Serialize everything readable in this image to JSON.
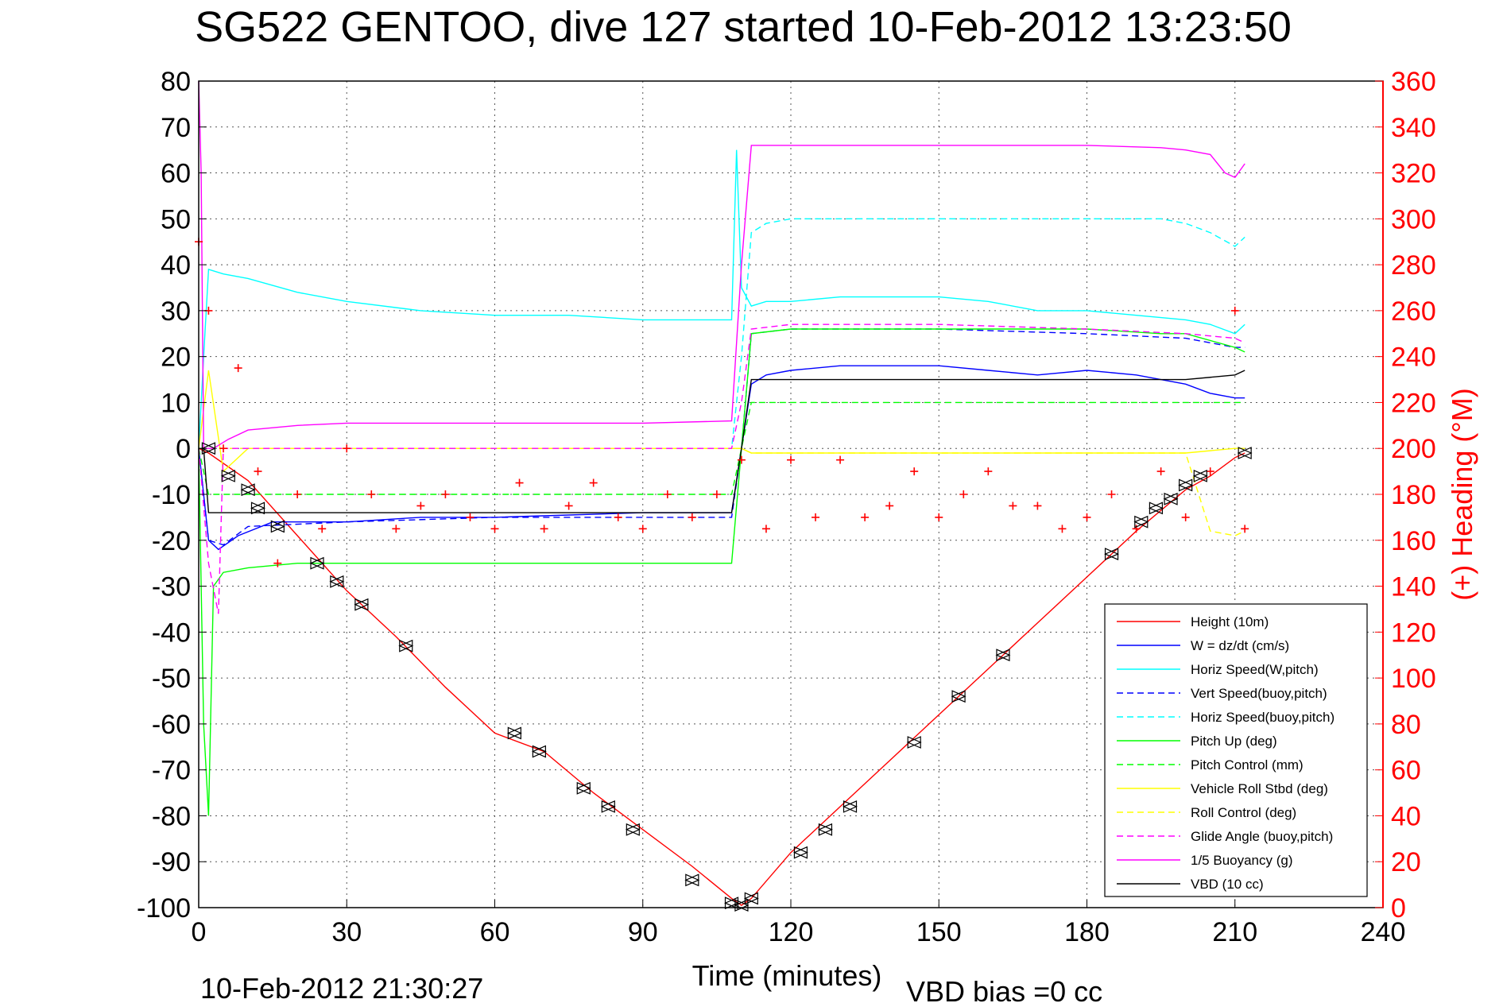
{
  "chart_data": {
    "type": "line",
    "title": "SG522 GENTOO, dive 127 started 10-Feb-2012 13:23:50",
    "xlabel": "Time (minutes)",
    "ylabel": "",
    "y2label": "(+) Heading (°M)",
    "xlim": [
      0,
      240
    ],
    "ylim": [
      -100,
      80
    ],
    "y2lim": [
      0,
      360
    ],
    "x_ticks": [
      0,
      30,
      60,
      90,
      120,
      150,
      180,
      210,
      240
    ],
    "y_ticks": [
      80,
      70,
      60,
      50,
      40,
      30,
      20,
      10,
      0,
      -10,
      -20,
      -30,
      -40,
      -50,
      -60,
      -70,
      -80,
      -90,
      -100
    ],
    "y2_ticks": [
      360,
      340,
      320,
      300,
      280,
      260,
      240,
      220,
      200,
      180,
      160,
      140,
      120,
      100,
      80,
      60,
      40,
      20,
      0
    ],
    "grid": true,
    "legend_position": "bottom-right",
    "footer_left": "10-Feb-2012 21:30:27",
    "footer_right": "VBD bias =0 cc",
    "colors": {
      "red": "#ff0000",
      "blue": "#0000ff",
      "cyan": "#00ffff",
      "green": "#00ff00",
      "yellow": "#ffff00",
      "magenta": "#ff00ff",
      "black": "#000000"
    },
    "series": [
      {
        "name": "Height (10m)",
        "color": "#ff0000",
        "style": "solid",
        "x": [
          0,
          2,
          10,
          20,
          30,
          40,
          50,
          60,
          70,
          80,
          90,
          100,
          108,
          110,
          112,
          120,
          130,
          140,
          150,
          160,
          170,
          180,
          190,
          200,
          205,
          210,
          212
        ],
        "y": [
          0,
          -1,
          -7,
          -19,
          -31,
          -41,
          -52,
          -62,
          -66,
          -75,
          -83,
          -91,
          -98,
          -99.5,
          -98,
          -88,
          -78,
          -68,
          -58,
          -48,
          -38,
          -28,
          -18,
          -9,
          -6,
          -2,
          -1
        ]
      },
      {
        "name": "W = dz/dt (cm/s)",
        "color": "#0000ff",
        "style": "solid",
        "x": [
          0,
          1,
          2,
          4,
          8,
          15,
          30,
          45,
          60,
          75,
          90,
          105,
          108,
          110,
          112,
          115,
          120,
          130,
          140,
          150,
          160,
          170,
          180,
          190,
          195,
          200,
          205,
          210,
          212
        ],
        "y": [
          0,
          -10,
          -20,
          -22,
          -19,
          -16,
          -16,
          -15,
          -15,
          -14.5,
          -14,
          -14,
          -14,
          0,
          14,
          16,
          17,
          18,
          18,
          18,
          17,
          16,
          17,
          16,
          15,
          14,
          12,
          11,
          11
        ]
      },
      {
        "name": "Horiz Speed(W,pitch)",
        "color": "#00ffff",
        "style": "solid",
        "x": [
          0,
          1,
          2,
          5,
          10,
          20,
          30,
          45,
          60,
          75,
          90,
          105,
          108,
          109,
          110,
          112,
          115,
          120,
          130,
          140,
          150,
          160,
          170,
          180,
          190,
          200,
          205,
          210,
          212
        ],
        "y": [
          0,
          20,
          39,
          38,
          37,
          34,
          32,
          30,
          29,
          29,
          28,
          28,
          28,
          65,
          35,
          31,
          32,
          32,
          33,
          33,
          33,
          32,
          30,
          30,
          29,
          28,
          27,
          25,
          27
        ]
      },
      {
        "name": "Vert Speed(buoy,pitch)",
        "color": "#0000ff",
        "style": "dashed",
        "x": [
          0,
          2,
          5,
          10,
          30,
          60,
          90,
          108,
          110,
          112,
          120,
          150,
          180,
          200,
          210,
          212
        ],
        "y": [
          0,
          -20,
          -21,
          -17,
          -16,
          -15,
          -15,
          -15,
          0,
          25,
          26,
          26,
          25,
          24,
          22,
          22
        ]
      },
      {
        "name": "Horiz Speed(buoy,pitch)",
        "color": "#00ffff",
        "style": "dashed",
        "x": [
          0,
          2,
          10,
          30,
          60,
          90,
          108,
          110,
          112,
          115,
          120,
          150,
          180,
          195,
          200,
          205,
          210,
          212
        ],
        "y": [
          0,
          0,
          0,
          0,
          0,
          0,
          0,
          20,
          47,
          49,
          50,
          50,
          50,
          50,
          49,
          47,
          44,
          46
        ]
      },
      {
        "name": "Pitch Up (deg)",
        "color": "#00ff00",
        "style": "solid",
        "x": [
          0,
          1,
          2,
          3,
          5,
          10,
          20,
          40,
          60,
          80,
          100,
          108,
          110,
          112,
          120,
          150,
          180,
          195,
          200,
          210,
          212
        ],
        "y": [
          0,
          -60,
          -80,
          -30,
          -27,
          -26,
          -25,
          -25,
          -25,
          -25,
          -25,
          -25,
          0,
          25,
          26,
          26,
          26,
          25,
          25,
          22,
          21
        ]
      },
      {
        "name": "Pitch Control (mm)",
        "color": "#00ff00",
        "style": "dashed",
        "x": [
          0,
          2,
          10,
          30,
          60,
          90,
          108,
          110,
          112,
          120,
          150,
          180,
          200,
          210,
          212
        ],
        "y": [
          0,
          -10,
          -10,
          -10,
          -10,
          -10,
          -10,
          0,
          10,
          10,
          10,
          10,
          10,
          10,
          10
        ]
      },
      {
        "name": "Vehicle Roll Stbd (deg)",
        "color": "#ffff00",
        "style": "solid",
        "x": [
          0,
          2,
          5,
          10,
          30,
          60,
          90,
          108,
          110,
          112,
          120,
          150,
          180,
          200,
          210,
          212
        ],
        "y": [
          0,
          17,
          -5,
          0,
          0,
          0,
          0,
          0,
          0,
          -1,
          -1,
          -1,
          -1,
          -1,
          0,
          0
        ]
      },
      {
        "name": "Roll Control (deg)",
        "color": "#ffff00",
        "style": "dashed",
        "x": [
          0,
          2,
          10,
          30,
          60,
          90,
          108,
          110,
          112,
          120,
          150,
          180,
          200,
          205,
          210,
          212
        ],
        "y": [
          0,
          0,
          0,
          0,
          0,
          0,
          0,
          0,
          -1,
          -1,
          -1,
          -1,
          -1,
          -18,
          -19,
          -18
        ]
      },
      {
        "name": "Glide Angle (buoy,pitch)",
        "color": "#ff00ff",
        "style": "dashed",
        "x": [
          0,
          2,
          4,
          5,
          10,
          30,
          60,
          90,
          108,
          110,
          112,
          120,
          150,
          180,
          200,
          210,
          212
        ],
        "y": [
          0,
          -25,
          -36,
          0,
          0,
          0,
          0,
          0,
          0,
          10,
          26,
          27,
          27,
          26,
          25,
          24,
          23
        ]
      },
      {
        "name": "1/5 Buoyancy (g)",
        "color": "#ff00ff",
        "style": "solid",
        "x": [
          0,
          0.5,
          1,
          3,
          6,
          10,
          20,
          30,
          45,
          60,
          90,
          108,
          110,
          112,
          120,
          150,
          180,
          195,
          200,
          205,
          208,
          210,
          212
        ],
        "y": [
          80,
          60,
          0,
          0,
          2,
          4,
          5,
          5.5,
          5.5,
          5.5,
          5.5,
          6,
          40,
          66,
          66,
          66,
          66,
          65.5,
          65,
          64,
          60,
          59,
          62
        ]
      },
      {
        "name": "VBD (10 cc)",
        "color": "#000000",
        "style": "solid",
        "x": [
          0,
          1,
          2,
          10,
          30,
          60,
          90,
          108,
          110,
          112,
          120,
          150,
          180,
          200,
          210,
          212
        ],
        "y": [
          0,
          0,
          -14,
          -14,
          -14,
          -14,
          -14,
          -14,
          0,
          15,
          15,
          15,
          15,
          15,
          16,
          17
        ]
      },
      {
        "name": "Heading",
        "color": "#ff0000",
        "style": "markers",
        "axis": "right",
        "x": [
          0,
          2,
          5,
          8,
          12,
          16,
          20,
          25,
          30,
          35,
          40,
          45,
          50,
          55,
          60,
          65,
          70,
          75,
          80,
          85,
          90,
          95,
          100,
          105,
          110,
          115,
          120,
          125,
          130,
          135,
          140,
          145,
          150,
          155,
          160,
          165,
          170,
          175,
          180,
          185,
          190,
          195,
          200,
          205,
          210,
          212
        ],
        "y": [
          290,
          260,
          200,
          235,
          190,
          150,
          180,
          165,
          200,
          180,
          165,
          175,
          180,
          170,
          165,
          185,
          165,
          175,
          185,
          170,
          165,
          180,
          170,
          180,
          195,
          165,
          195,
          170,
          195,
          170,
          175,
          190,
          170,
          180,
          190,
          175,
          175,
          165,
          170,
          180,
          165,
          190,
          170,
          190,
          260,
          165
        ]
      }
    ],
    "markers": {
      "name": "Height markers",
      "color": "#000000",
      "x": [
        2,
        6,
        10,
        12,
        16,
        24,
        28,
        33,
        42,
        64,
        69,
        78,
        83,
        88,
        100,
        108,
        110,
        112,
        122,
        127,
        132,
        145,
        154,
        163,
        185,
        191,
        194,
        197,
        200,
        203,
        212
      ],
      "y": [
        0,
        -6,
        -9,
        -13,
        -17,
        -25,
        -29,
        -34,
        -43,
        -62,
        -66,
        -74,
        -78,
        -83,
        -94,
        -99,
        -99.5,
        -98,
        -88,
        -83,
        -78,
        -64,
        -54,
        -45,
        -23,
        -16,
        -13,
        -11,
        -8,
        -6,
        -1
      ]
    }
  }
}
